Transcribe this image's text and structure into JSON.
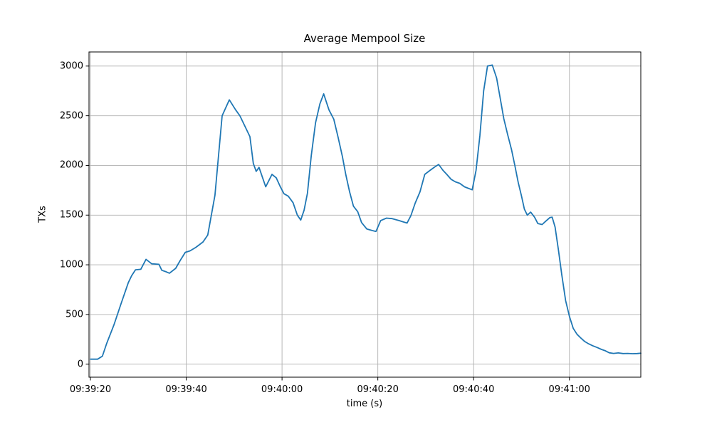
{
  "chart_data": {
    "type": "line",
    "title": "Average Mempool Size",
    "xlabel": "time (s)",
    "ylabel": "TXs",
    "grid": true,
    "legend": "none",
    "line_color": "#1f77b4",
    "grid_color": "#b0b0b0",
    "spine_color": "#000000",
    "x_tick_labels": [
      "09:39:20",
      "09:39:40",
      "09:40:00",
      "09:40:20",
      "09:40:40",
      "09:41:00"
    ],
    "x_tick_seconds": [
      0,
      20,
      40,
      60,
      80,
      100
    ],
    "y_ticks": [
      0,
      500,
      1000,
      1500,
      2000,
      2500,
      3000
    ],
    "x_range_seconds": [
      -0.3,
      114.9
    ],
    "ylim": [
      -131,
      3142
    ],
    "series": [
      {
        "name": "average-mempool-size",
        "x_seconds": [
          0,
          1.5,
          2.5,
          3.4,
          4.9,
          6.4,
          7.9,
          8.6,
          9.4,
          10.5,
          11.6,
          12.8,
          14.3,
          14.9,
          15.8,
          16.5,
          17.8,
          18.7,
          19.8,
          20.8,
          22,
          23.5,
          24.5,
          26,
          27.5,
          29,
          30.3,
          31.2,
          32.3,
          33.3,
          34,
          34.6,
          35.2,
          36.6,
          37.9,
          38.8,
          39.6,
          40.4,
          41.3,
          42.3,
          43.2,
          43.9,
          44.6,
          45.3,
          46.1,
          47,
          47.9,
          48.7,
          49.8,
          50.8,
          51.7,
          52.6,
          53.3,
          54.1,
          54.9,
          55.8,
          56.6,
          57.7,
          58.8,
          59.6,
          60.6,
          61.8,
          63,
          64.4,
          65.4,
          66.1,
          66.9,
          67.8,
          68.8,
          69.8,
          70.9,
          71.9,
          72.7,
          73.6,
          74.4,
          75.3,
          76.2,
          77.1,
          78.1,
          78.9,
          79.7,
          80.5,
          81.3,
          82.1,
          82.9,
          83.9,
          84.8,
          85.5,
          86.3,
          87.1,
          87.9,
          88.6,
          89.3,
          90,
          90.6,
          91.2,
          91.9,
          92.7,
          93.4,
          94.3,
          95.1,
          95.9,
          96.4,
          97,
          97.7,
          98.4,
          99.2,
          100,
          100.8,
          101.6,
          102.4,
          103.2,
          104,
          104.9,
          105.8,
          106.7,
          107.5,
          108.3,
          109.2,
          110.2,
          111.2,
          112.2,
          113.2,
          114.1,
          114.9
        ],
        "values": [
          50,
          50,
          80,
          210,
          395,
          610,
          820,
          890,
          950,
          955,
          1055,
          1010,
          1005,
          945,
          930,
          915,
          965,
          1040,
          1125,
          1140,
          1175,
          1230,
          1300,
          1700,
          2500,
          2660,
          2560,
          2500,
          2390,
          2290,
          2020,
          1940,
          1980,
          1785,
          1910,
          1875,
          1790,
          1715,
          1690,
          1625,
          1500,
          1450,
          1550,
          1720,
          2100,
          2430,
          2620,
          2720,
          2560,
          2465,
          2285,
          2090,
          1910,
          1735,
          1590,
          1535,
          1425,
          1360,
          1345,
          1335,
          1445,
          1470,
          1465,
          1445,
          1430,
          1420,
          1495,
          1620,
          1735,
          1910,
          1950,
          1985,
          2010,
          1950,
          1910,
          1860,
          1835,
          1820,
          1785,
          1770,
          1755,
          1950,
          2300,
          2750,
          3000,
          3010,
          2880,
          2690,
          2470,
          2310,
          2160,
          2000,
          1830,
          1690,
          1560,
          1500,
          1530,
          1480,
          1415,
          1405,
          1440,
          1475,
          1480,
          1380,
          1150,
          900,
          640,
          480,
          360,
          300,
          262,
          228,
          205,
          185,
          168,
          148,
          135,
          115,
          108,
          113,
          107,
          108,
          105,
          107,
          110
        ]
      }
    ]
  }
}
